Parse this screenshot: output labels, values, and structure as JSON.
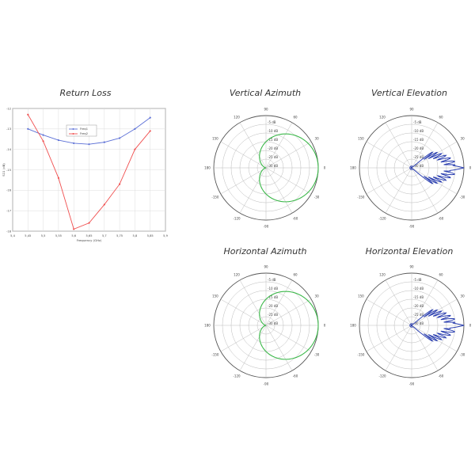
{
  "charts": {
    "return_loss": {
      "title": "Return Loss"
    },
    "v_az": {
      "title": "Vertical Azimuth"
    },
    "v_el": {
      "title": "Vertical Elevation"
    },
    "h_az": {
      "title": "Horizontal Azimuth"
    },
    "h_el": {
      "title": "Horizontal Elevation"
    }
  },
  "colors": {
    "blue": "#5b6fd6",
    "red": "#f05050",
    "green": "#3cb84a",
    "navy": "#2b3fb0",
    "grid": "#bbbbbb",
    "axis": "#555555"
  },
  "chart_data": [
    {
      "id": "return_loss",
      "type": "line",
      "title": "Return Loss",
      "xlabel": "Frequency (GHz)",
      "ylabel": "S11 (dB)",
      "xlim": [
        5.4,
        5.9
      ],
      "ylim": [
        -18,
        -12
      ],
      "x_ticks": [
        "5,4",
        "5,45",
        "5,5",
        "5,55",
        "5,6",
        "5,65",
        "5,7",
        "5,75",
        "5,8",
        "5,85",
        "5,9"
      ],
      "y_ticks": [
        "-12",
        "-13",
        "-14",
        "-15",
        "-16",
        "-17",
        "-18"
      ],
      "legend": "top-left",
      "grid": true,
      "series": [
        {
          "name": "Freq1",
          "color": "blue",
          "x": [
            5.45,
            5.5,
            5.55,
            5.6,
            5.65,
            5.7,
            5.75,
            5.8,
            5.85
          ],
          "y": [
            -13.0,
            -13.3,
            -13.55,
            -13.7,
            -13.75,
            -13.65,
            -13.45,
            -13.0,
            -12.45
          ]
        },
        {
          "name": "Freq2",
          "color": "red",
          "x": [
            5.45,
            5.5,
            5.55,
            5.6,
            5.65,
            5.7,
            5.75,
            5.8,
            5.85
          ],
          "y": [
            -12.3,
            -13.6,
            -15.4,
            -17.9,
            -17.6,
            -16.7,
            -15.7,
            -14.0,
            -13.1
          ]
        }
      ]
    },
    {
      "id": "v_az",
      "type": "polar",
      "title": "Vertical Azimuth",
      "r_ticks": [
        "-5 dB",
        "-10 dB",
        "-15 dB",
        "-20 dB",
        "-25 dB",
        "-30 dB"
      ],
      "angle_labels": [
        "0",
        "30",
        "60",
        "90",
        "120",
        "150",
        "180",
        "-150",
        "-120",
        "-90",
        "-60",
        "-30"
      ],
      "series": [
        {
          "color": "green",
          "pattern": "cardioid",
          "angle_deg": [
            0,
            15,
            30,
            45,
            60,
            75,
            90,
            105,
            120,
            135,
            150,
            165,
            170,
            175,
            180,
            185,
            190,
            195,
            210,
            225,
            240,
            255,
            270,
            285,
            300,
            315,
            330,
            345
          ],
          "value_db": [
            0,
            -0.2,
            -0.6,
            -1.3,
            -2.4,
            -3.8,
            -5.5,
            -7.8,
            -10.5,
            -13.5,
            -16.5,
            -19.5,
            -23,
            -18,
            -25,
            -18,
            -23,
            -19.5,
            -16.5,
            -13.5,
            -10.5,
            -7.8,
            -5.5,
            -3.8,
            -2.4,
            -1.3,
            -0.6,
            -0.2
          ]
        }
      ]
    },
    {
      "id": "v_el",
      "type": "polar",
      "title": "Vertical Elevation",
      "r_ticks": [
        "-5 dB",
        "-10 dB",
        "-15 dB",
        "-20 dB",
        "-25 dB",
        "-30 dB"
      ],
      "angle_labels": [
        "0",
        "30",
        "60",
        "90",
        "120",
        "150",
        "180",
        "-150",
        "-120",
        "-90",
        "-60",
        "-30"
      ],
      "series": [
        {
          "color": "navy",
          "pattern": "lobes",
          "angle_deg": [
            0,
            3,
            6,
            9,
            12,
            16,
            20,
            25,
            30,
            40,
            60,
            90,
            120,
            180,
            240,
            270,
            300,
            320,
            330,
            335,
            340,
            344,
            348,
            351,
            354,
            357
          ],
          "value_db": [
            0,
            -2,
            -8,
            -12,
            -16,
            -19,
            -21,
            -23,
            -25,
            -27,
            -29,
            -30,
            -30,
            -30,
            -30,
            -30,
            -29,
            -27,
            -25,
            -23,
            -21,
            -19,
            -16,
            -12,
            -8,
            -2
          ]
        }
      ]
    },
    {
      "id": "h_az",
      "type": "polar",
      "title": "Horizontal Azimuth",
      "r_ticks": [
        "-5 dB",
        "-10 dB",
        "-15 dB",
        "-20 dB",
        "-25 dB",
        "-30 dB"
      ],
      "angle_labels": [
        "0",
        "30",
        "60",
        "90",
        "120",
        "150",
        "180",
        "-150",
        "-120",
        "-90",
        "-60",
        "-30"
      ],
      "series": [
        {
          "color": "green",
          "pattern": "cardioid",
          "angle_deg": [
            0,
            15,
            30,
            45,
            60,
            75,
            90,
            105,
            120,
            135,
            150,
            165,
            170,
            175,
            180,
            185,
            190,
            195,
            210,
            225,
            240,
            255,
            270,
            285,
            300,
            315,
            330,
            345
          ],
          "value_db": [
            0,
            -0.2,
            -0.6,
            -1.3,
            -2.4,
            -3.8,
            -5.5,
            -7.8,
            -10.5,
            -13.5,
            -16.5,
            -19.5,
            -22,
            -17,
            -24,
            -17,
            -22,
            -19.5,
            -16.5,
            -13.5,
            -10.5,
            -7.8,
            -5.5,
            -3.8,
            -2.4,
            -1.3,
            -0.6,
            -0.2
          ]
        }
      ]
    },
    {
      "id": "h_el",
      "type": "polar",
      "title": "Horizontal Elevation",
      "r_ticks": [
        "-5 dB",
        "-10 dB",
        "-15 dB",
        "-20 dB",
        "-25 dB",
        "-30 dB"
      ],
      "angle_labels": [
        "0",
        "30",
        "60",
        "90",
        "120",
        "150",
        "180",
        "-150",
        "-120",
        "-90",
        "-60",
        "-30"
      ],
      "series": [
        {
          "color": "navy",
          "pattern": "lobes",
          "angle_deg": [
            0,
            3,
            6,
            9,
            12,
            16,
            20,
            25,
            30,
            40,
            60,
            90,
            120,
            180,
            240,
            270,
            300,
            320,
            330,
            335,
            340,
            344,
            348,
            351,
            354,
            357
          ],
          "value_db": [
            0,
            -2,
            -8,
            -12,
            -16,
            -19,
            -21,
            -23,
            -25,
            -27,
            -29,
            -30,
            -30,
            -30,
            -30,
            -30,
            -29,
            -27,
            -25,
            -23,
            -21,
            -19,
            -16,
            -12,
            -8,
            -2
          ]
        }
      ]
    }
  ]
}
